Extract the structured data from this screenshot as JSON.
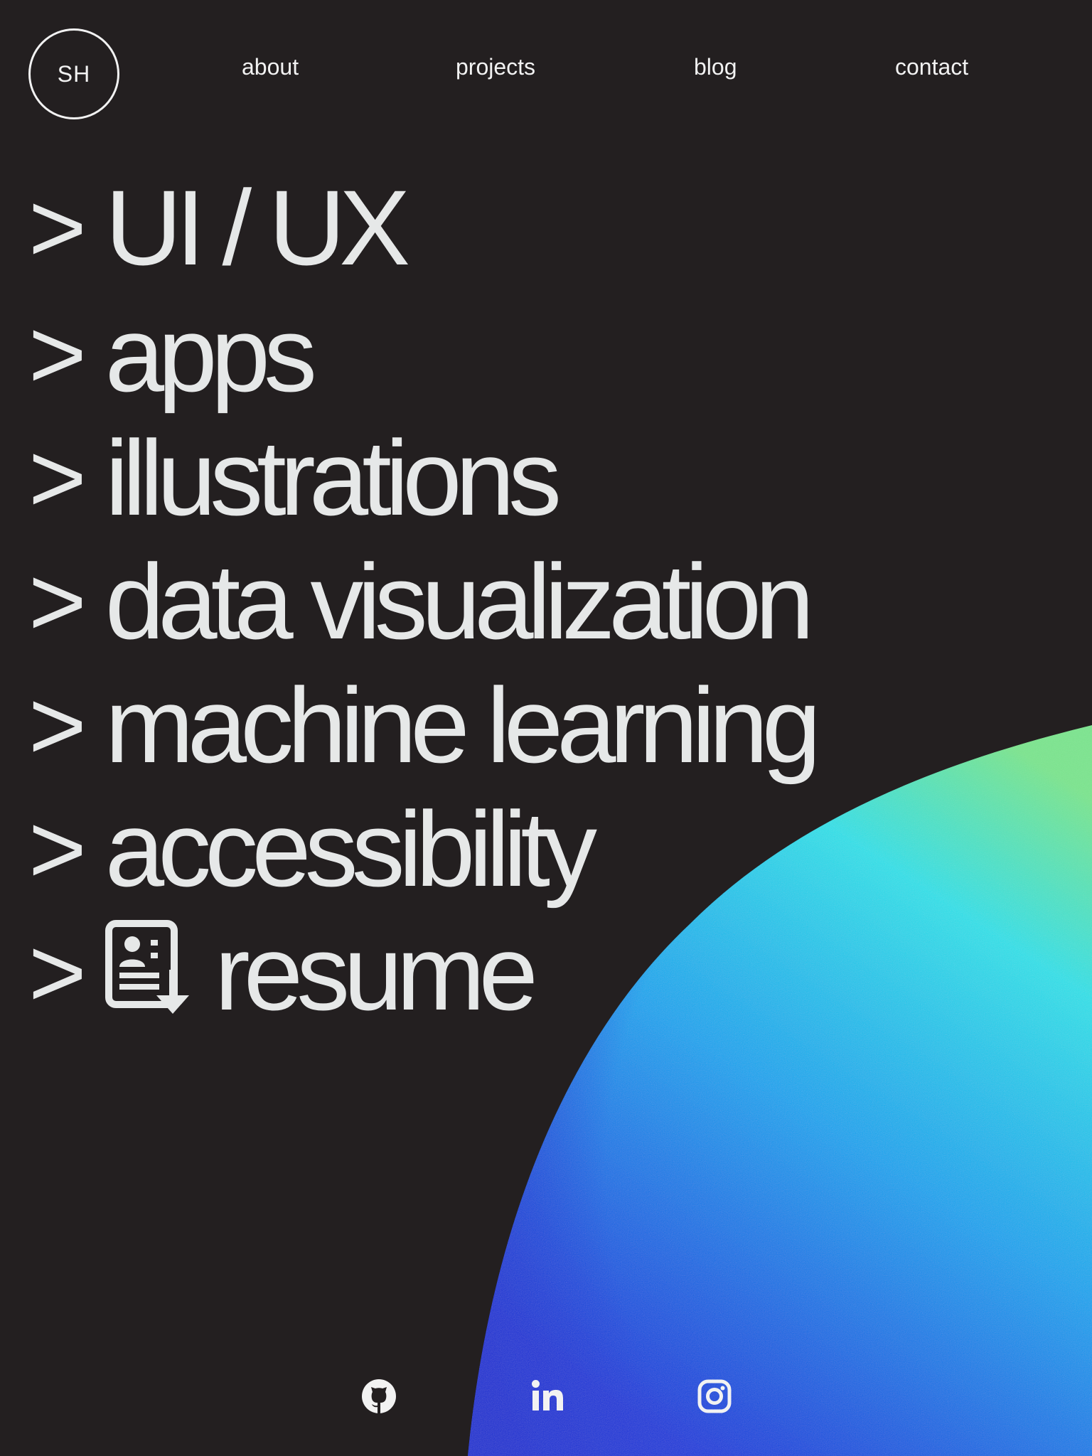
{
  "header": {
    "logo_text": "SH",
    "nav": [
      {
        "label": "about"
      },
      {
        "label": "projects"
      },
      {
        "label": "blog"
      },
      {
        "label": "contact"
      }
    ]
  },
  "menu": {
    "caret": ">",
    "items": [
      {
        "label": "UI / UX"
      },
      {
        "label": "apps"
      },
      {
        "label": "illustrations"
      },
      {
        "label": "data visualization"
      },
      {
        "label": "machine learning"
      },
      {
        "label": "accessibility"
      },
      {
        "label": "resume",
        "icon": "resume-download-icon"
      }
    ]
  },
  "social": [
    {
      "icon": "github-icon"
    },
    {
      "icon": "linkedin-icon"
    },
    {
      "icon": "instagram-icon"
    }
  ],
  "colors": {
    "background": "#231f20",
    "text": "#e6e8e8",
    "gradient_green": "#7ce58f",
    "gradient_cyan": "#2fe0e8",
    "gradient_sky": "#13a4ee",
    "gradient_blue": "#1a3cdb"
  }
}
